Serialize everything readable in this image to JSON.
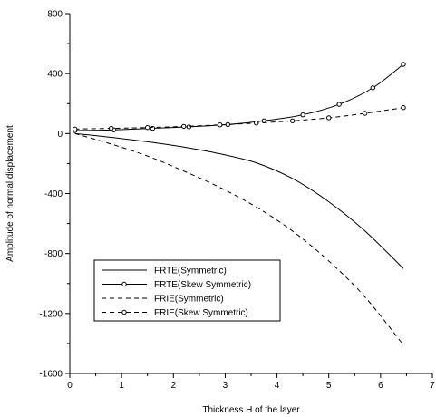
{
  "chart_data": {
    "type": "line",
    "title": "",
    "xlabel": "Thickness H of the layer",
    "ylabel": "Amplitude of normal displacement",
    "xlim": [
      0,
      7
    ],
    "ylim": [
      -1600,
      800
    ],
    "x_ticks": [
      "0",
      "1",
      "2",
      "3",
      "4",
      "5",
      "6",
      "7"
    ],
    "y_ticks": [
      "800",
      "400",
      "0",
      "-400",
      "-800",
      "-1200",
      "-1600"
    ],
    "grid": false,
    "legend_position": "lower-left",
    "series": [
      {
        "name": "FRTE(Symmetric)",
        "style": "solid",
        "marker": false,
        "x": [
          0.1,
          0.8,
          1.5,
          2.2,
          2.9,
          3.6,
          4.3,
          5.0,
          5.7,
          6.44
        ],
        "y": [
          0,
          -25,
          -55,
          -90,
          -135,
          -195,
          -300,
          -455,
          -650,
          -900
        ]
      },
      {
        "name": "FRTE(Skew Symmetric)",
        "style": "solid",
        "marker": true,
        "x": [
          0.1,
          0.85,
          1.6,
          2.3,
          3.05,
          3.75,
          4.5,
          5.2,
          5.85,
          6.44
        ],
        "y": [
          20,
          25,
          35,
          45,
          60,
          85,
          125,
          195,
          305,
          462
        ]
      },
      {
        "name": "FRIE(Symmetric)",
        "style": "dashed",
        "marker": false,
        "x": [
          0.1,
          0.8,
          1.5,
          2.2,
          2.9,
          3.6,
          4.3,
          5.0,
          5.7,
          6.44
        ],
        "y": [
          0,
          -70,
          -150,
          -250,
          -360,
          -490,
          -650,
          -850,
          -1090,
          -1410
        ]
      },
      {
        "name": "FRIE(Skew Symmetric)",
        "style": "dashed",
        "marker": true,
        "x": [
          0.1,
          0.8,
          1.5,
          2.2,
          2.9,
          3.6,
          4.3,
          5.0,
          5.7,
          6.44
        ],
        "y": [
          30,
          35,
          40,
          48,
          58,
          70,
          85,
          105,
          135,
          173
        ]
      }
    ]
  }
}
